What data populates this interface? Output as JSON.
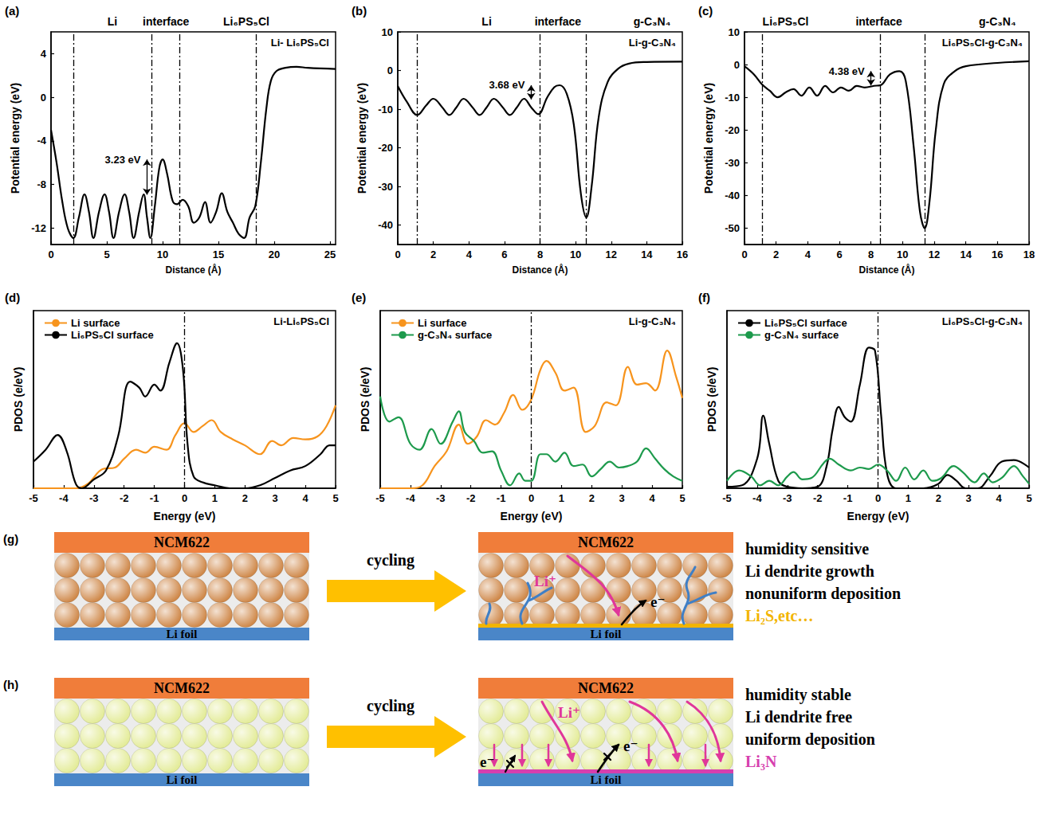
{
  "chart_data": [
    {
      "panel": "(a)",
      "type": "line",
      "xlabel": "Distance (Å)",
      "ylabel": "Potential energy (eV)",
      "xlim": [
        0,
        25.5
      ],
      "ylim": [
        -13.5,
        6
      ],
      "xticks": [
        0,
        5,
        10,
        15,
        20,
        25
      ],
      "yticks": [
        -12,
        -8,
        -4,
        0,
        4
      ],
      "grid": false,
      "inner_label": "Li- Li₆PS₅Cl",
      "regions": [
        {
          "text": "Li",
          "x": 5.5
        },
        {
          "text": "interface",
          "x": 10.3
        },
        {
          "text": "Li₆PS₅Cl",
          "x": 17.5
        }
      ],
      "vlines": [
        2,
        9,
        11.5,
        18.4
      ],
      "annotation": {
        "text": "3.23 eV",
        "x": 8.6,
        "y_from": -8.93,
        "y_to": -5.7
      },
      "series": [
        {
          "color": "#000000",
          "x": [
            0,
            0.5,
            1,
            1.5,
            2,
            2.5,
            3,
            3.4,
            3.8,
            4.3,
            4.8,
            5.2,
            5.6,
            6.1,
            6.6,
            7,
            7.4,
            7.9,
            8.3,
            8.6,
            8.9,
            9.3,
            9.7,
            10,
            10.4,
            10.9,
            11.3,
            11.8,
            12.3,
            12.8,
            13.3,
            13.8,
            14.3,
            14.8,
            15.3,
            15.8,
            16.3,
            16.8,
            17.3,
            17.8,
            18.3,
            18.8,
            19.3,
            19.7,
            20.2,
            21,
            22,
            23,
            25.5
          ],
          "values": [
            -3,
            -6,
            -9.5,
            -12,
            -12.9,
            -11,
            -8.9,
            -10.5,
            -12.9,
            -10.5,
            -8.9,
            -10.5,
            -12.9,
            -10.5,
            -8.9,
            -10.5,
            -12.9,
            -10.5,
            -8.9,
            -11,
            -12.9,
            -10,
            -6.5,
            -5.7,
            -7,
            -9.5,
            -9.8,
            -9.4,
            -10,
            -11.5,
            -11,
            -9.6,
            -11.5,
            -10.5,
            -8.8,
            -10.5,
            -11.5,
            -12.5,
            -12.9,
            -11,
            -10,
            -6,
            -1,
            1.5,
            2.4,
            2.7,
            2.8,
            2.7,
            2.6
          ]
        }
      ]
    },
    {
      "panel": "(b)",
      "type": "line",
      "xlabel": "Distance (Å)",
      "ylabel": "Potential energy (eV)",
      "xlim": [
        0,
        16
      ],
      "ylim": [
        -45,
        10
      ],
      "xticks": [
        0,
        2,
        4,
        6,
        8,
        10,
        12,
        14,
        16
      ],
      "yticks": [
        -40,
        -30,
        -20,
        -10,
        0,
        10
      ],
      "grid": false,
      "inner_label": "Li-g-C₃N₄",
      "regions": [
        {
          "text": "Li",
          "x": 5
        },
        {
          "text": "interface",
          "x": 9
        },
        {
          "text": "g-C₃N₄",
          "x": 14.3
        }
      ],
      "vlines": [
        1.1,
        8,
        10.6
      ],
      "annotation": {
        "text": "3.68 eV",
        "x": 7.5,
        "y_from": -7.48,
        "y_to": -3.8
      },
      "series": [
        {
          "color": "#000000",
          "x": [
            0,
            0.5,
            1.1,
            1.6,
            2,
            2.5,
            2.9,
            3.3,
            3.7,
            4.2,
            4.6,
            5,
            5.4,
            5.9,
            6.3,
            6.7,
            7.1,
            7.5,
            7.9,
            8.4,
            8.8,
            9.1,
            9.5,
            9.9,
            10.3,
            10.6,
            10.9,
            11.3,
            11.8,
            12.4,
            13,
            14,
            16
          ],
          "values": [
            -4,
            -8,
            -11.5,
            -9,
            -7.3,
            -9.5,
            -11.5,
            -9.5,
            -7.3,
            -9.5,
            -11.5,
            -9.5,
            -7.3,
            -9.5,
            -11.5,
            -9.5,
            -7.3,
            -9.5,
            -11.3,
            -7,
            -4.3,
            -3.8,
            -6,
            -14,
            -32,
            -38,
            -30,
            -12,
            -3,
            0.5,
            1.8,
            2.2,
            2.3
          ]
        }
      ]
    },
    {
      "panel": "(c)",
      "type": "line",
      "xlabel": "Distance (Å)",
      "ylabel": "Potential energy (eV)",
      "xlim": [
        0,
        18
      ],
      "ylim": [
        -55,
        10
      ],
      "xticks": [
        0,
        2,
        4,
        6,
        8,
        10,
        12,
        14,
        16,
        18
      ],
      "yticks": [
        -50,
        -40,
        -30,
        -20,
        -10,
        0,
        10
      ],
      "grid": false,
      "inner_label": "Li₆PS₅Cl-g-C₃N₄",
      "regions": [
        {
          "text": "Li₆PS₅Cl",
          "x": 2.6
        },
        {
          "text": "interface",
          "x": 8.5
        },
        {
          "text": "g-C₃N₄",
          "x": 16
        }
      ],
      "vlines": [
        1.1,
        8.6,
        11.4
      ],
      "annotation": {
        "text": "4.38 eV",
        "x": 8,
        "y_from": -6.38,
        "y_to": -2
      },
      "series": [
        {
          "color": "#000000",
          "x": [
            0,
            0.6,
            1.1,
            1.6,
            2.1,
            2.6,
            3.1,
            3.6,
            4.1,
            4.6,
            5.1,
            5.6,
            6.1,
            6.6,
            7.1,
            7.6,
            8.2,
            8.6,
            9.2,
            9.8,
            10.2,
            10.7,
            11.1,
            11.4,
            11.7,
            12.1,
            12.6,
            13.3,
            14,
            16,
            18
          ],
          "values": [
            -0.5,
            -3,
            -6,
            -8,
            -10,
            -8.5,
            -7.5,
            -9.5,
            -7,
            -9.5,
            -6.5,
            -8.5,
            -7,
            -8,
            -6.5,
            -7,
            -6.5,
            -6.3,
            -3,
            -2,
            -5,
            -25,
            -45,
            -50,
            -42,
            -20,
            -6,
            -2,
            -0.5,
            0.5,
            1
          ]
        }
      ]
    },
    {
      "panel": "(d)",
      "type": "line",
      "xlabel": "Energy (eV)",
      "ylabel": "PDOS (e/eV)",
      "xlim": [
        -5,
        5
      ],
      "ylim": [
        0,
        12
      ],
      "xticks": [
        -5,
        -4,
        -3,
        -2,
        -1,
        0,
        1,
        2,
        3,
        4,
        5
      ],
      "grid": false,
      "tick_labels": "x",
      "legend": "upper left",
      "inner_label": "Li-Li₆PS₅Cl",
      "vlines": [
        0
      ],
      "series": [
        {
          "name": "Li surface",
          "color": "#f7941d",
          "x": [
            -5,
            -3.6,
            -3.2,
            -2.7,
            -2.3,
            -2,
            -1.6,
            -1.3,
            -1,
            -0.6,
            -0.3,
            0,
            0.3,
            0.6,
            0.9,
            1.2,
            1.6,
            2,
            2.5,
            2.9,
            3.2,
            3.6,
            4,
            4.4,
            4.7,
            5
          ],
          "values": [
            0,
            0,
            0.3,
            1.3,
            1.4,
            2,
            2.6,
            2.4,
            2.8,
            2.6,
            3.6,
            4.4,
            3.8,
            4.2,
            4.6,
            3.8,
            3.3,
            2.9,
            2.3,
            3.2,
            2.9,
            3.4,
            3.3,
            3.5,
            4.2,
            5.6
          ]
        },
        {
          "name": "Li₆PS₅Cl surface",
          "color": "#000000",
          "x": [
            -5,
            -4.6,
            -4.2,
            -3.9,
            -3.6,
            -3.4,
            -3,
            -2.6,
            -2.2,
            -1.8,
            -1.5,
            -1.3,
            -1,
            -0.8,
            -0.5,
            -0.25,
            -0.05,
            0.1,
            0.3,
            0.6,
            1,
            1.5,
            2,
            2.5,
            3,
            3.5,
            4,
            4.5,
            4.8,
            5
          ],
          "values": [
            1.8,
            2.6,
            3.6,
            2.5,
            0.3,
            0,
            0.6,
            1.2,
            3.5,
            7.2,
            6.8,
            6.2,
            7,
            6.6,
            8.5,
            9.8,
            8,
            3,
            0.8,
            0.4,
            0.2,
            0,
            0,
            0.2,
            0.7,
            1.2,
            1.5,
            2.3,
            2.9,
            2.9
          ]
        }
      ]
    },
    {
      "panel": "(e)",
      "type": "line",
      "xlabel": "Energy (eV)",
      "ylabel": "PDOS (e/eV)",
      "xlim": [
        -5,
        5
      ],
      "ylim": [
        0,
        12
      ],
      "xticks": [
        -5,
        -4,
        -3,
        -2,
        -1,
        0,
        1,
        2,
        3,
        4,
        5
      ],
      "grid": false,
      "tick_labels": "x",
      "legend": "upper left",
      "inner_label": "Li-g-C₃N₄",
      "vlines": [
        0
      ],
      "series": [
        {
          "name": "Li surface",
          "color": "#f7941d",
          "x": [
            -5,
            -4,
            -3.6,
            -3.2,
            -2.8,
            -2.4,
            -2.1,
            -1.8,
            -1.5,
            -1.2,
            -0.9,
            -0.6,
            -0.3,
            0,
            0.3,
            0.5,
            0.8,
            1.1,
            1.4,
            1.8,
            2.1,
            2.5,
            2.8,
            3.2,
            3.5,
            3.8,
            4.1,
            4.5,
            4.8,
            5
          ],
          "values": [
            0,
            0,
            0.2,
            1.5,
            2.5,
            4.3,
            3,
            3.5,
            4.6,
            4.3,
            5.1,
            6.3,
            5.3,
            6,
            8,
            8.6,
            7.8,
            6.6,
            6.8,
            3.8,
            4.2,
            5.8,
            5.6,
            8.2,
            7,
            7.1,
            6.6,
            9.3,
            7.5,
            6.1
          ]
        },
        {
          "name": "g-C₃N₄ surface",
          "color": "#1d9a4c",
          "x": [
            -5,
            -4.7,
            -4.4,
            -4,
            -3.7,
            -3.3,
            -3,
            -2.6,
            -2.4,
            -2.2,
            -1.9,
            -1.6,
            -1.3,
            -1,
            -0.7,
            -0.4,
            -0.2,
            0,
            0.3,
            0.5,
            0.8,
            1.1,
            1.4,
            1.7,
            2,
            2.3,
            2.6,
            2.9,
            3.2,
            3.5,
            3.8,
            4.1,
            4.4,
            4.7,
            5
          ],
          "values": [
            6.2,
            4.5,
            4.8,
            3,
            2.6,
            4,
            3,
            4.5,
            5.2,
            3.8,
            3.2,
            2.4,
            2.5,
            1.2,
            0.2,
            1,
            0.5,
            0.5,
            2.3,
            2.3,
            1.8,
            2.4,
            1.5,
            1.6,
            0.8,
            1.3,
            1.8,
            1.4,
            1.5,
            1.8,
            2.7,
            2,
            1.3,
            0.8,
            0.5
          ]
        }
      ]
    },
    {
      "panel": "(f)",
      "type": "line",
      "xlabel": "Energy (eV)",
      "ylabel": "PDOS (e/eV)",
      "xlim": [
        -5,
        5
      ],
      "ylim": [
        0,
        12
      ],
      "xticks": [
        -5,
        -4,
        -3,
        -2,
        -1,
        0,
        1,
        2,
        3,
        4,
        5
      ],
      "grid": false,
      "tick_labels": "x",
      "legend": "upper left",
      "inner_label": "Li₆PS₅Cl-g-C₃N₄",
      "vlines": [
        0
      ],
      "series": [
        {
          "name": "Li₆PS₅Cl surface",
          "color": "#000000",
          "x": [
            -5,
            -4.5,
            -4,
            -3.8,
            -3.6,
            -3.3,
            -3,
            -2.5,
            -2,
            -1.7,
            -1.5,
            -1.3,
            -1.1,
            -0.9,
            -0.6,
            -0.3,
            -0.1,
            0.1,
            0.3,
            0.6,
            1.5,
            2,
            2.3,
            2.6,
            2.9,
            3.3,
            3.7,
            4.1,
            4.5,
            5
          ],
          "values": [
            0.1,
            0.2,
            2,
            4.9,
            3,
            0.5,
            0.1,
            0,
            0.1,
            1.5,
            4,
            5.5,
            4.8,
            4.5,
            7,
            9.5,
            9.3,
            5,
            1,
            0,
            0,
            0.3,
            0.9,
            0.5,
            0,
            0,
            0.8,
            1.8,
            1.9,
            1.4
          ]
        },
        {
          "name": "g-C₃N₄ surface",
          "color": "#1d9a4c",
          "x": [
            -5,
            -4.6,
            -4.2,
            -3.9,
            -3.6,
            -3.3,
            -3,
            -2.8,
            -2.5,
            -2.2,
            -1.8,
            -1.6,
            -1.3,
            -0.9,
            -0.6,
            -0.3,
            0,
            0.3,
            0.6,
            0.9,
            1.2,
            1.5,
            1.8,
            2.1,
            2.5,
            2.8,
            3.2,
            3.5,
            3.8,
            4.1,
            4.5,
            4.8,
            5
          ],
          "values": [
            0.5,
            1.2,
            0.8,
            0.2,
            0.5,
            0.2,
            0.8,
            1.1,
            0.6,
            0.7,
            1.7,
            2,
            1.6,
            1.2,
            1.4,
            1.3,
            1.6,
            1.2,
            0.5,
            1.4,
            0.6,
            1.2,
            0.5,
            0.7,
            1.5,
            1.1,
            0.4,
            1,
            0.4,
            0.7,
            1.5,
            0.8,
            0.3
          ]
        }
      ]
    }
  ],
  "diagrams": [
    {
      "panel": "(g)",
      "cathode": "NCM622",
      "anode": "Li foil",
      "process": "cycling",
      "ion": "Li⁺",
      "electron": "e⁻",
      "notes": [
        "humidity sensitive",
        "Li dendrite growth",
        "nonuniform deposition"
      ],
      "product": "Li₂S,etc…",
      "product_color": "#f2b400",
      "ball_color": "#d08a4c",
      "ion_color": "#e0369a",
      "dendrites": true
    },
    {
      "panel": "(h)",
      "cathode": "NCM622",
      "anode": "Li foil",
      "process": "cycling",
      "ion": "Li⁺",
      "electron": "e⁻",
      "notes": [
        "humidity stable",
        "Li dendrite free",
        "uniform deposition"
      ],
      "product": "Li₃N",
      "product_color": "#d63fae",
      "ball_color": "#e4ec9a",
      "ion_color": "#e0369a",
      "dendrites": false
    }
  ]
}
